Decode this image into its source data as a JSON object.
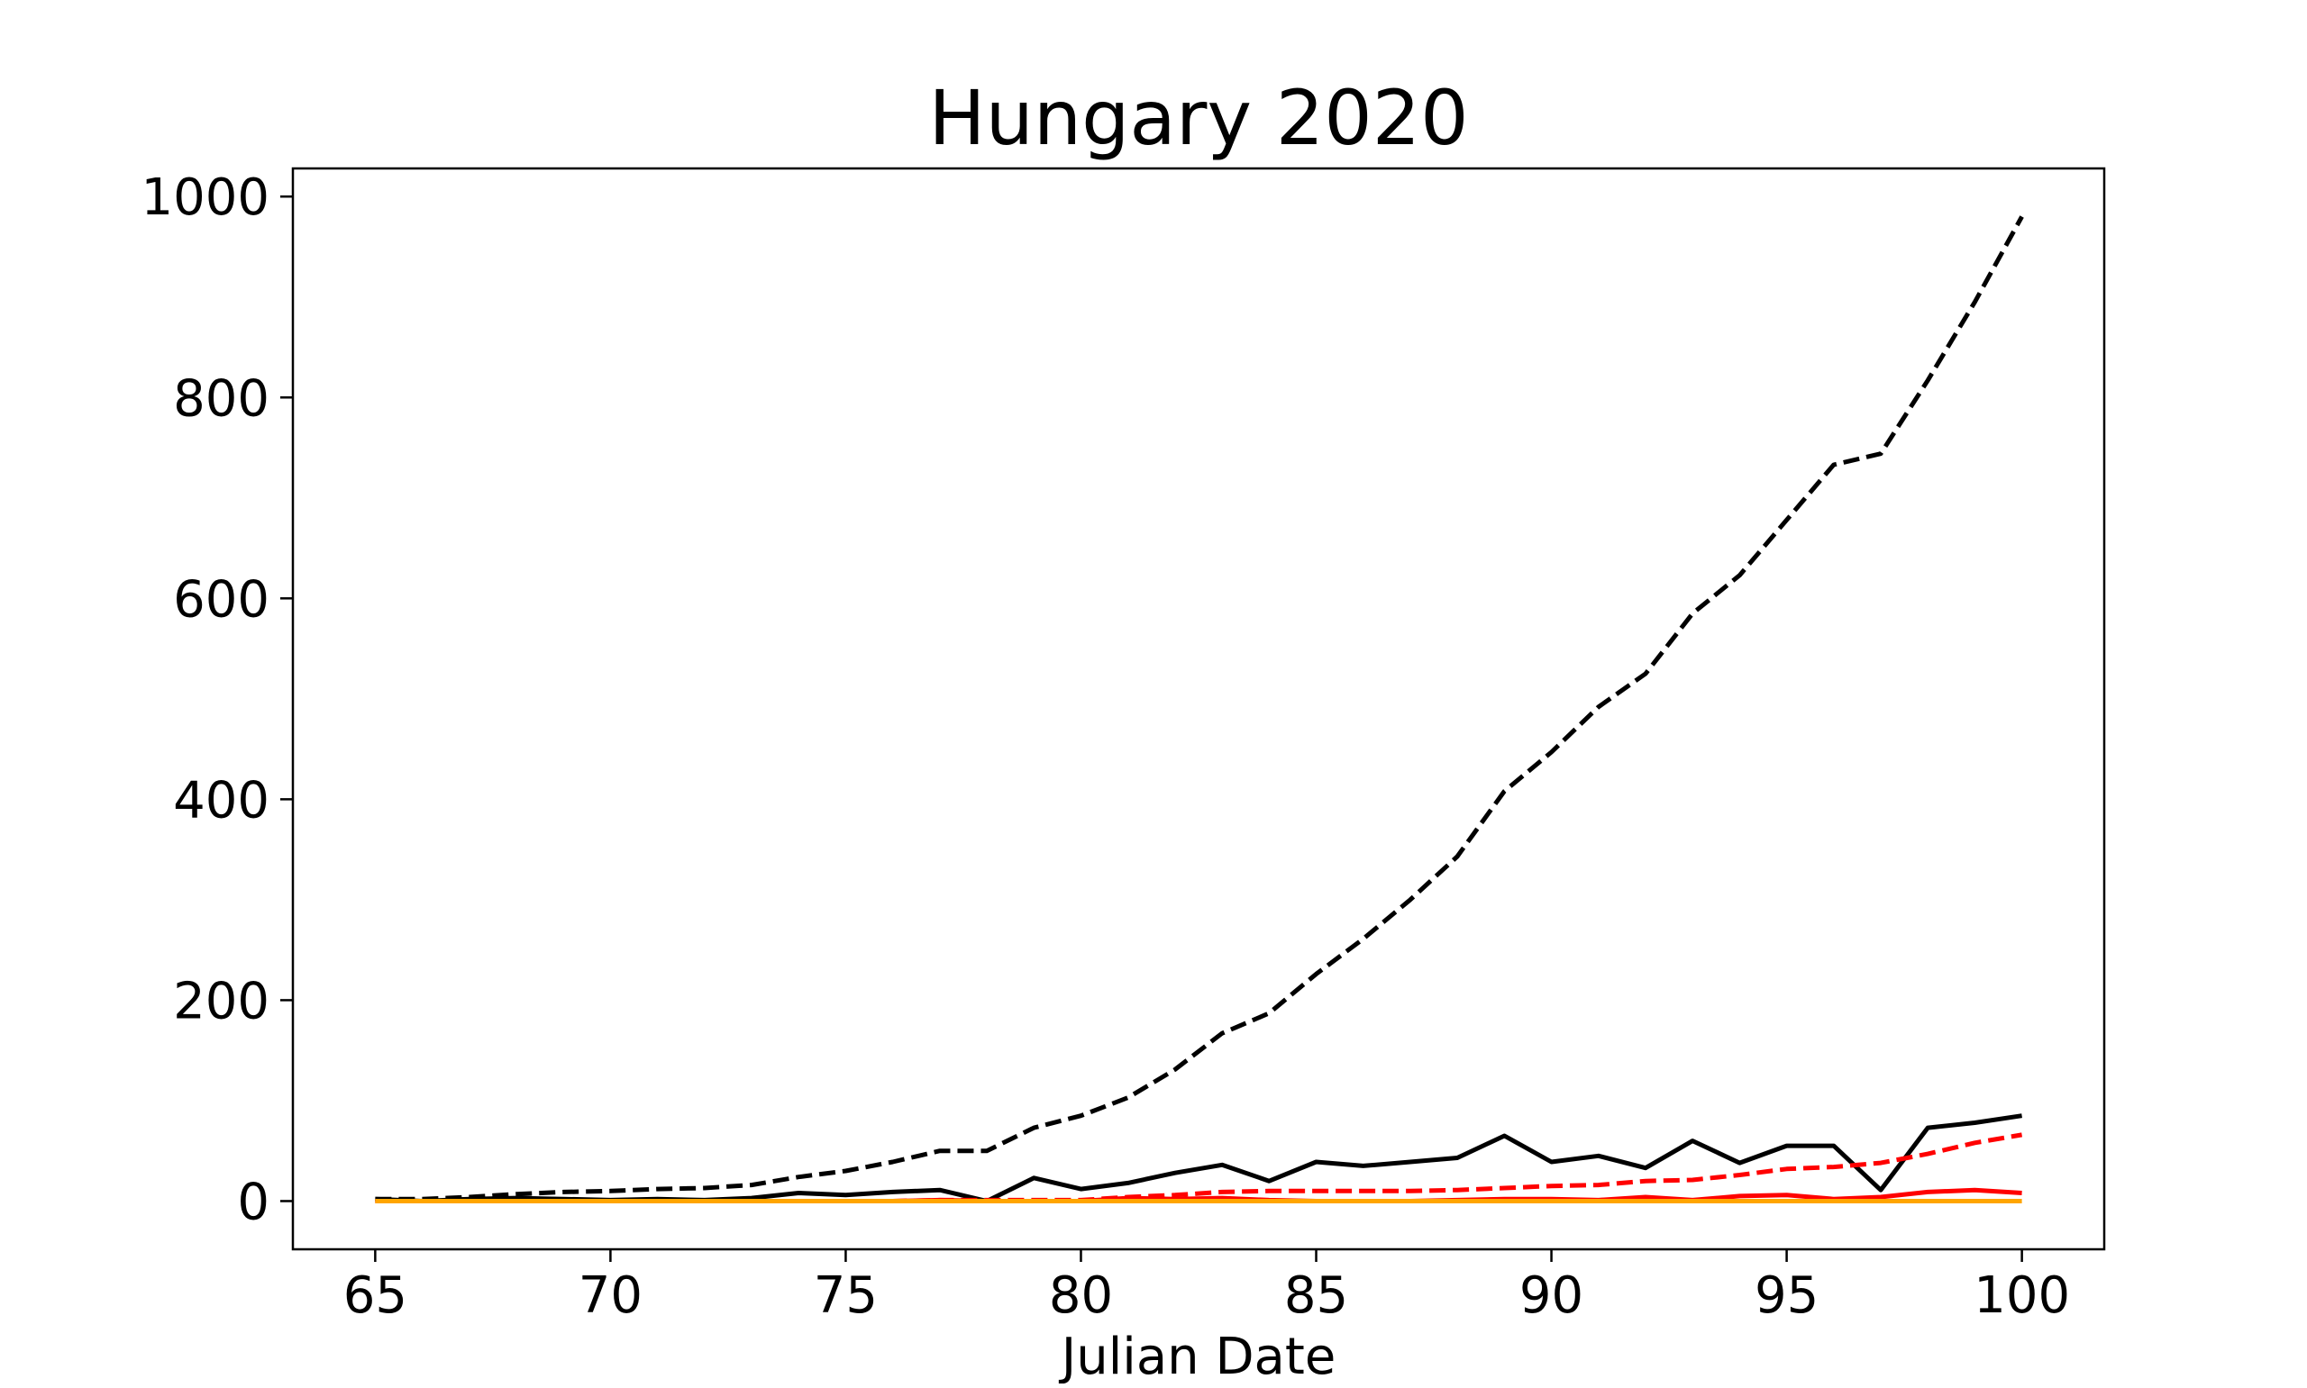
{
  "chart_data": {
    "type": "line",
    "title": "Hungary 2020",
    "xlabel": "Julian Date",
    "ylabel": "",
    "xlim": [
      63.25,
      101.75
    ],
    "ylim": [
      -48,
      1028
    ],
    "xticks": [
      65,
      70,
      75,
      80,
      85,
      90,
      95,
      100
    ],
    "yticks": [
      0,
      200,
      400,
      600,
      800,
      1000
    ],
    "x": [
      65,
      66,
      67,
      68,
      69,
      70,
      71,
      72,
      73,
      74,
      75,
      76,
      77,
      78,
      79,
      80,
      81,
      82,
      83,
      84,
      85,
      86,
      87,
      88,
      89,
      90,
      91,
      92,
      93,
      94,
      95,
      96,
      97,
      98,
      99,
      100
    ],
    "series": [
      {
        "color": "#000000",
        "dash": "dashed",
        "values": [
          2,
          2,
          4,
          7,
          9,
          10,
          12,
          13,
          16,
          24,
          30,
          39,
          50,
          50,
          73,
          85,
          103,
          131,
          167,
          187,
          226,
          261,
          300,
          343,
          408,
          447,
          492,
          525,
          585,
          623,
          678,
          733,
          744,
          817,
          895,
          980
        ]
      },
      {
        "color": "#000000",
        "dash": "solid",
        "values": [
          2,
          0,
          2,
          3,
          2,
          1,
          2,
          1,
          3,
          8,
          6,
          9,
          11,
          0,
          23,
          12,
          18,
          28,
          36,
          20,
          39,
          35,
          39,
          43,
          65,
          39,
          45,
          33,
          60,
          38,
          55,
          55,
          11,
          73,
          78,
          85
        ]
      },
      {
        "color": "#ff0000",
        "dash": "dashed",
        "values": [
          0,
          0,
          0,
          0,
          0,
          0,
          0,
          0,
          0,
          0,
          0,
          0,
          1,
          1,
          1,
          1,
          4,
          6,
          9,
          10,
          10,
          10,
          10,
          11,
          13,
          15,
          16,
          20,
          21,
          26,
          32,
          34,
          38,
          47,
          58,
          66
        ]
      },
      {
        "color": "#ff0000",
        "dash": "solid",
        "values": [
          0,
          0,
          0,
          0,
          0,
          0,
          0,
          0,
          0,
          0,
          0,
          0,
          1,
          0,
          0,
          0,
          3,
          2,
          3,
          1,
          0,
          0,
          0,
          1,
          2,
          2,
          1,
          4,
          1,
          5,
          6,
          2,
          4,
          9,
          11,
          8
        ]
      },
      {
        "color": "#ffa500",
        "dash": "solid",
        "values": [
          0,
          0,
          0,
          0,
          0,
          0,
          0,
          0,
          0,
          0,
          0,
          0,
          0,
          0,
          0,
          0,
          0,
          0,
          0,
          0,
          0,
          0,
          0,
          0,
          0,
          0,
          0,
          0,
          0,
          0,
          0,
          0,
          0,
          0,
          0,
          0
        ]
      }
    ],
    "grid": false,
    "legend": "none"
  }
}
